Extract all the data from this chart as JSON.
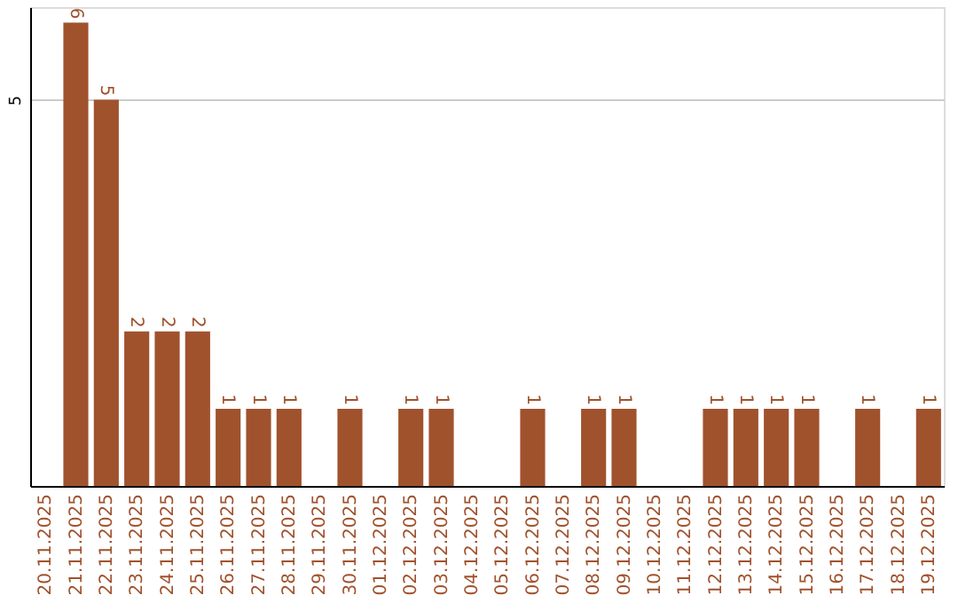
{
  "chart_data": {
    "type": "bar",
    "categories": [
      "20.11.2025",
      "21.11.2025",
      "22.11.2025",
      "23.11.2025",
      "24.11.2025",
      "25.11.2025",
      "26.11.2025",
      "27.11.2025",
      "28.11.2025",
      "29.11.2025",
      "30.11.2025",
      "01.12.2025",
      "02.12.2025",
      "03.12.2025",
      "04.12.2025",
      "05.12.2025",
      "06.12.2025",
      "07.12.2025",
      "08.12.2025",
      "09.12.2025",
      "10.12.2025",
      "11.12.2025",
      "12.12.2025",
      "13.12.2025",
      "14.12.2025",
      "15.12.2025",
      "16.12.2025",
      "17.12.2025",
      "18.12.2025",
      "19.12.2025"
    ],
    "values": [
      0,
      6,
      5,
      2,
      2,
      2,
      1,
      1,
      1,
      0,
      1,
      0,
      1,
      1,
      0,
      0,
      1,
      0,
      1,
      1,
      0,
      0,
      1,
      1,
      1,
      1,
      0,
      1,
      0,
      1
    ],
    "value_labels": [
      null,
      "6",
      "5",
      "2",
      "2",
      "2",
      "1",
      "1",
      "1",
      null,
      "1",
      null,
      "1",
      "1",
      null,
      null,
      "1",
      null,
      "1",
      "1",
      null,
      null,
      "1",
      "1",
      "1",
      "1",
      null,
      "1",
      null,
      "1"
    ],
    "color": "#a0522d",
    "ylim": [
      0,
      6.2
    ],
    "yticks": [
      5
    ],
    "grid": "y"
  }
}
